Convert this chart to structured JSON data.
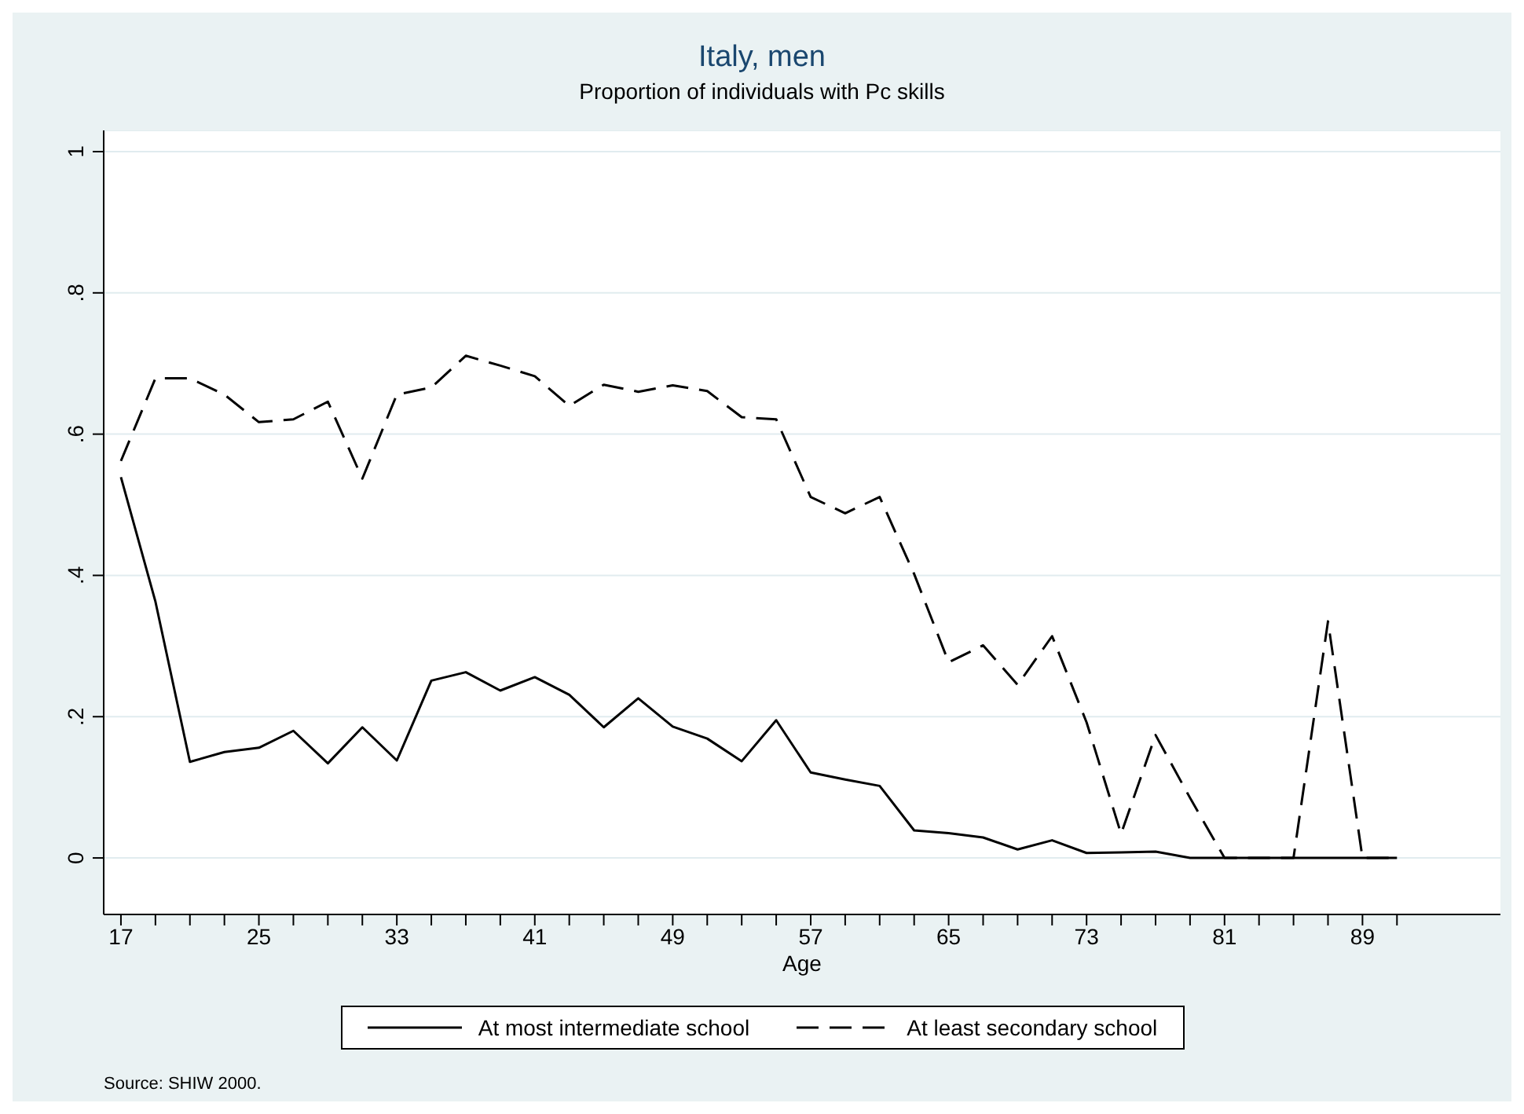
{
  "chart_data": {
    "type": "line",
    "title": "Italy, men",
    "subtitle": "Proportion of individuals with Pc skills",
    "xlabel": "Age",
    "annotations": [
      "Source: SHIW 2000."
    ],
    "x": [
      17,
      19,
      21,
      23,
      25,
      27,
      29,
      31,
      33,
      35,
      37,
      39,
      41,
      43,
      45,
      47,
      49,
      51,
      53,
      55,
      57,
      59,
      61,
      63,
      65,
      67,
      69,
      71,
      73,
      75,
      77,
      79,
      81,
      83,
      85,
      87,
      89,
      91
    ],
    "series": [
      {
        "name": "At most intermediate school",
        "color": "#000000",
        "line_style": "solid",
        "values": [
          0.539,
          0.363,
          0.136,
          0.15,
          0.156,
          0.18,
          0.134,
          0.185,
          0.138,
          0.251,
          0.263,
          0.237,
          0.256,
          0.231,
          0.185,
          0.226,
          0.186,
          0.169,
          0.137,
          0.195,
          0.121,
          0.111,
          0.102,
          0.039,
          0.035,
          0.029,
          0.012,
          0.025,
          0.007,
          0.008,
          0.009,
          0,
          0,
          0,
          0,
          0,
          0,
          0
        ]
      },
      {
        "name": "At least secondary school",
        "color": "#000000",
        "line_style": "dashed",
        "values": [
          0.562,
          0.679,
          0.679,
          0.656,
          0.617,
          0.621,
          0.646,
          0.537,
          0.656,
          0.666,
          0.711,
          0.697,
          0.682,
          0.64,
          0.67,
          0.66,
          0.669,
          0.661,
          0.624,
          0.621,
          0.511,
          0.488,
          0.511,
          0.402,
          0.277,
          0.301,
          0.245,
          0.314,
          0.192,
          0.034,
          0.174,
          0.085,
          0,
          0,
          0,
          0.335,
          0,
          0
        ]
      }
    ],
    "xlim": [
      16,
      97
    ],
    "xticks": [
      17,
      {
        "value": 19,
        "label": null
      },
      {
        "value": 21,
        "label": null
      },
      {
        "value": 23,
        "label": null
      },
      25,
      {
        "value": 27,
        "label": null
      },
      {
        "value": 29,
        "label": null
      },
      {
        "value": 31,
        "label": null
      },
      33,
      {
        "value": 35,
        "label": null
      },
      {
        "value": 37,
        "label": null
      },
      {
        "value": 39,
        "label": null
      },
      41,
      {
        "value": 43,
        "label": null
      },
      {
        "value": 45,
        "label": null
      },
      {
        "value": 47,
        "label": null
      },
      49,
      {
        "value": 51,
        "label": null
      },
      {
        "value": 53,
        "label": null
      },
      {
        "value": 55,
        "label": null
      },
      57,
      {
        "value": 59,
        "label": null
      },
      {
        "value": 61,
        "label": null
      },
      {
        "value": 63,
        "label": null
      },
      65,
      {
        "value": 67,
        "label": null
      },
      {
        "value": 69,
        "label": null
      },
      {
        "value": 71,
        "label": null
      },
      73,
      {
        "value": 75,
        "label": null
      },
      {
        "value": 77,
        "label": null
      },
      {
        "value": 79,
        "label": null
      },
      81,
      {
        "value": 83,
        "label": null
      },
      {
        "value": 85,
        "label": null
      },
      {
        "value": 87,
        "label": null
      },
      89,
      {
        "value": 91,
        "label": null
      }
    ],
    "ylim": [
      -0.08,
      1.03
    ],
    "yticks": [
      0,
      {
        "value": 0.2,
        "label": ".2"
      },
      {
        "value": 0.4,
        "label": ".4"
      },
      {
        "value": 0.6,
        "label": ".6"
      },
      {
        "value": 0.8,
        "label": ".8"
      },
      1
    ],
    "grid": "y",
    "legend": "bottom",
    "marker": "none"
  }
}
